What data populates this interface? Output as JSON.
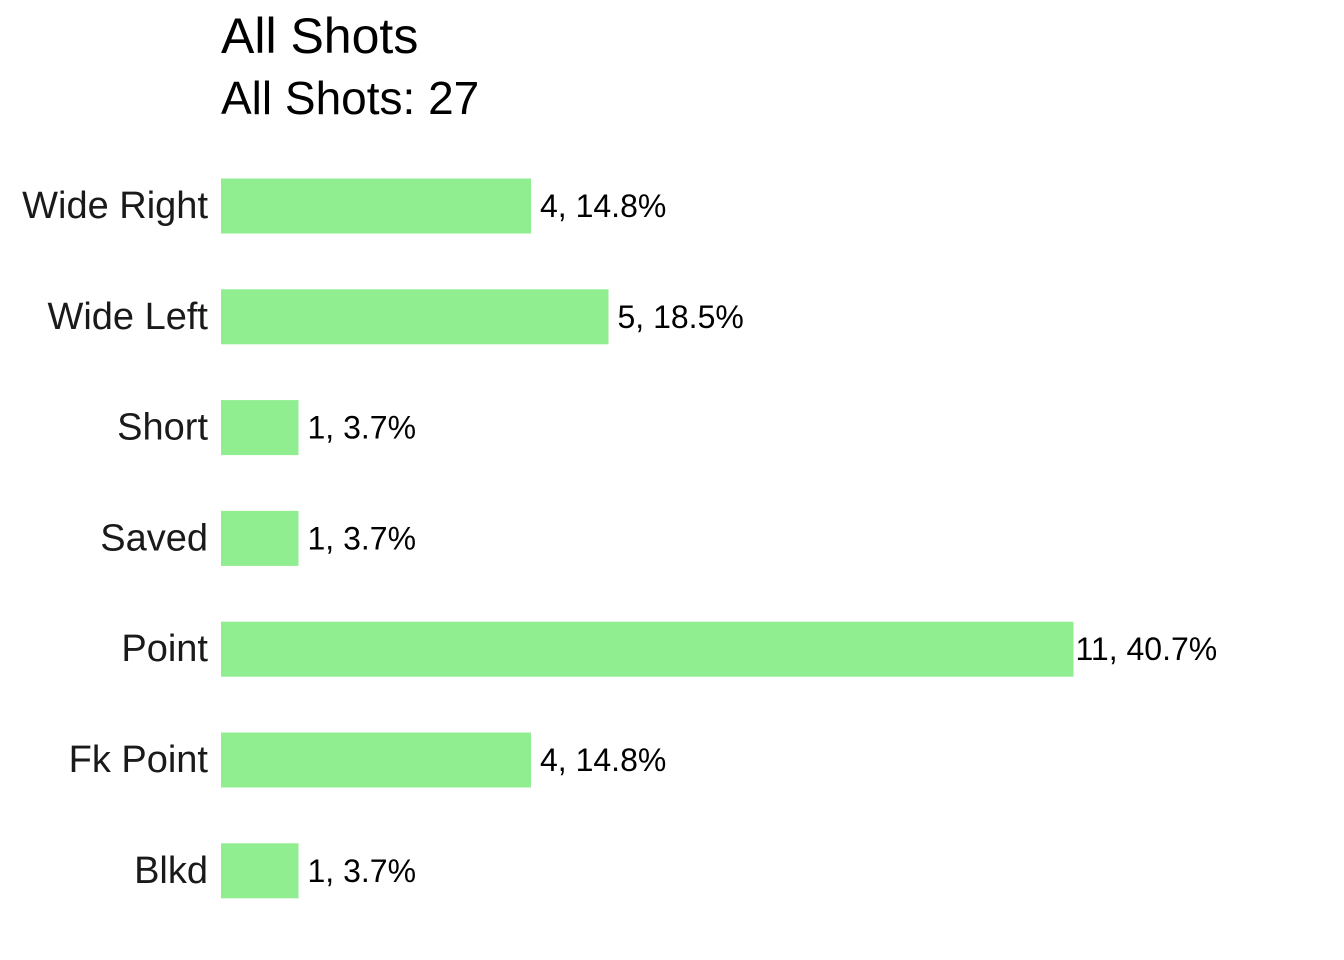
{
  "chart_data": {
    "type": "bar",
    "orientation": "horizontal",
    "title": "All Shots",
    "subtitle": "All Shots: 27",
    "categories": [
      "Wide Right",
      "Wide Left",
      "Short",
      "Saved",
      "Point",
      "Fk Point",
      "Blkd"
    ],
    "values": [
      4,
      5,
      1,
      1,
      11,
      4,
      1
    ],
    "labels": [
      "4, 14.8%",
      "5, 18.5%",
      "1, 3.7%",
      "1, 3.7%",
      "11, 40.7%",
      "4, 14.8%",
      "1, 3.7%"
    ],
    "xlim": [
      0,
      11
    ],
    "grid": false,
    "bar_color": "#90EE90"
  }
}
